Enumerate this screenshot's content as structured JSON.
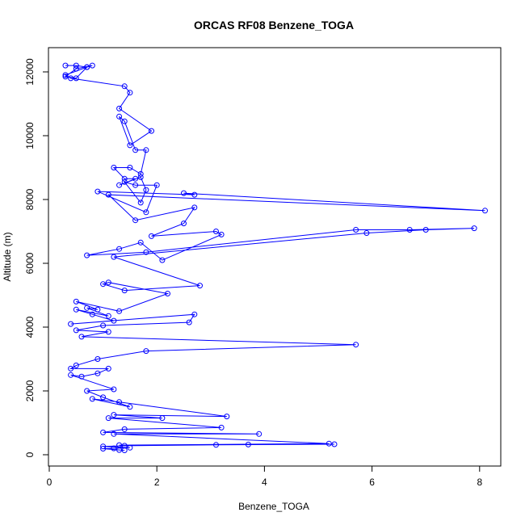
{
  "chart_data": {
    "type": "line",
    "title": "ORCAS RF08 Benzene_TOGA",
    "xlabel": "Benzene_TOGA",
    "ylabel": "Altitude (m)",
    "xlim": [
      0,
      8.4
    ],
    "ylim": [
      0,
      12700
    ],
    "x_ticks": [
      0,
      2,
      4,
      6,
      8
    ],
    "y_ticks": [
      0,
      2000,
      4000,
      6000,
      8000,
      10000,
      12000
    ],
    "x_tick_labels": [
      "0",
      "2",
      "4",
      "6",
      "8"
    ],
    "y_tick_labels": [
      "0",
      "2000",
      "4000",
      "6000",
      "8000",
      "10000",
      "12000"
    ],
    "grid": false,
    "line_color": "#0000ff",
    "marker": "open-circle",
    "series": [
      {
        "x": [
          0.3,
          0.5,
          0.7,
          0.8,
          0.5,
          0.3,
          0.5,
          0.7,
          0.3,
          0.4,
          1.4,
          1.5,
          1.3,
          1.9,
          1.5,
          1.3,
          1.4,
          1.6,
          1.8,
          1.7,
          1.5,
          1.2,
          1.4,
          1.6,
          1.3,
          1.7,
          1.8,
          1.7,
          1.4,
          1.6,
          2.0,
          1.8,
          0.9,
          2.7,
          2.5,
          8.1,
          1.1,
          1.6,
          2.7,
          2.5,
          1.9,
          3.1,
          3.2,
          2.1,
          1.7,
          1.3,
          0.7,
          1.8,
          5.7,
          6.7,
          7.9,
          7.0,
          5.9,
          1.2,
          2.8,
          1.4,
          1.0,
          1.1,
          2.2,
          1.3,
          0.5,
          0.9,
          0.7,
          1.1,
          0.5,
          0.8,
          1.2,
          0.4,
          2.7,
          2.6,
          1.0,
          0.5,
          1.1,
          0.6,
          5.7,
          1.8,
          0.9,
          0.5,
          0.4,
          1.1,
          0.9,
          0.6,
          0.4,
          1.2,
          0.7,
          1.0,
          1.5,
          0.8,
          1.3,
          3.3,
          1.2,
          2.1,
          1.1,
          3.2,
          1.4,
          1.0,
          3.9,
          1.2,
          5.2,
          1.3,
          5.3,
          3.1,
          3.7,
          1.4,
          1.0,
          1.5,
          1.2,
          1.0,
          1.3,
          1.4
        ],
        "y": [
          12200,
          12200,
          12150,
          12200,
          12100,
          11850,
          11800,
          12150,
          11900,
          11800,
          11550,
          11350,
          10850,
          10150,
          9700,
          10600,
          10450,
          9550,
          9550,
          8800,
          9000,
          9000,
          8650,
          8650,
          8450,
          8700,
          8300,
          7900,
          8550,
          8450,
          8450,
          7600,
          8250,
          8150,
          8200,
          7650,
          8150,
          7350,
          7750,
          7250,
          6850,
          7000,
          6900,
          6100,
          6650,
          6450,
          6250,
          6350,
          7050,
          7050,
          7100,
          7050,
          6950,
          6200,
          5300,
          5150,
          5350,
          5400,
          5050,
          4500,
          4800,
          4550,
          4600,
          4350,
          4550,
          4400,
          4200,
          4100,
          4400,
          4150,
          4050,
          3900,
          3850,
          3700,
          3450,
          3250,
          3000,
          2800,
          2700,
          2700,
          2550,
          2450,
          2500,
          2050,
          2000,
          1800,
          1500,
          1750,
          1650,
          1200,
          1250,
          1150,
          1150,
          850,
          800,
          700,
          650,
          650,
          350,
          300,
          330,
          310,
          320,
          280,
          260,
          220,
          200,
          190,
          150,
          140
        ]
      }
    ]
  }
}
